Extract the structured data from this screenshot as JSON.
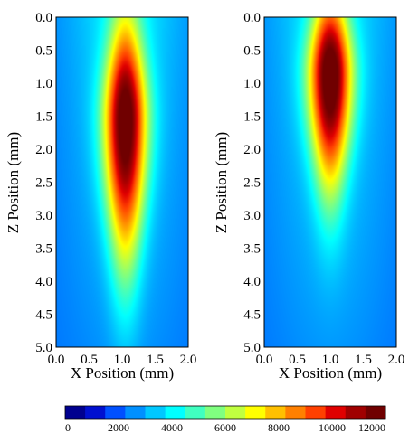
{
  "chart_data": [
    {
      "type": "heatmap",
      "xlabel": "X Position (mm)",
      "ylabel": "Z Position (mm)",
      "xlim": [
        0.0,
        2.0
      ],
      "ylim": [
        5.0,
        0.0
      ],
      "xticks": [
        "0.0",
        "0.5",
        "1.0",
        "1.5",
        "2.0"
      ],
      "yticks": [
        "0.0",
        "0.5",
        "1.0",
        "1.5",
        "2.0",
        "2.5",
        "3.0",
        "3.5",
        "4.0",
        "4.5",
        "5.0"
      ],
      "peak_x": 1.05,
      "peak_z": 1.6,
      "peak_value": 11500,
      "core_extent_z": [
        0.3,
        3.6
      ],
      "background_value": 2000
    },
    {
      "type": "heatmap",
      "xlabel": "X Position (mm)",
      "ylabel": "Z Position (mm)",
      "xlim": [
        0.0,
        2.0
      ],
      "ylim": [
        5.0,
        0.0
      ],
      "xticks": [
        "0.0",
        "0.5",
        "1.0",
        "1.5",
        "2.0"
      ],
      "yticks": [
        "0.0",
        "0.5",
        "1.0",
        "1.5",
        "2.0",
        "2.5",
        "3.0",
        "3.5",
        "4.0",
        "4.5",
        "5.0"
      ],
      "peak_x": 1.0,
      "peak_z": 0.9,
      "peak_value": 11500,
      "core_extent_z": [
        0.0,
        2.4
      ],
      "background_value": 2000
    }
  ],
  "colorbar": {
    "min": 0,
    "max": 12000,
    "ticks": [
      "0",
      "2000",
      "4000",
      "6000",
      "8000",
      "10000",
      "12000"
    ],
    "colors": [
      "#00008f",
      "#0010d0",
      "#0050ff",
      "#0090ff",
      "#00c8ff",
      "#00ffff",
      "#40ffc0",
      "#80ff80",
      "#c0ff40",
      "#ffff00",
      "#ffc000",
      "#ff8000",
      "#ff4000",
      "#e00000",
      "#a00000",
      "#700000"
    ]
  }
}
